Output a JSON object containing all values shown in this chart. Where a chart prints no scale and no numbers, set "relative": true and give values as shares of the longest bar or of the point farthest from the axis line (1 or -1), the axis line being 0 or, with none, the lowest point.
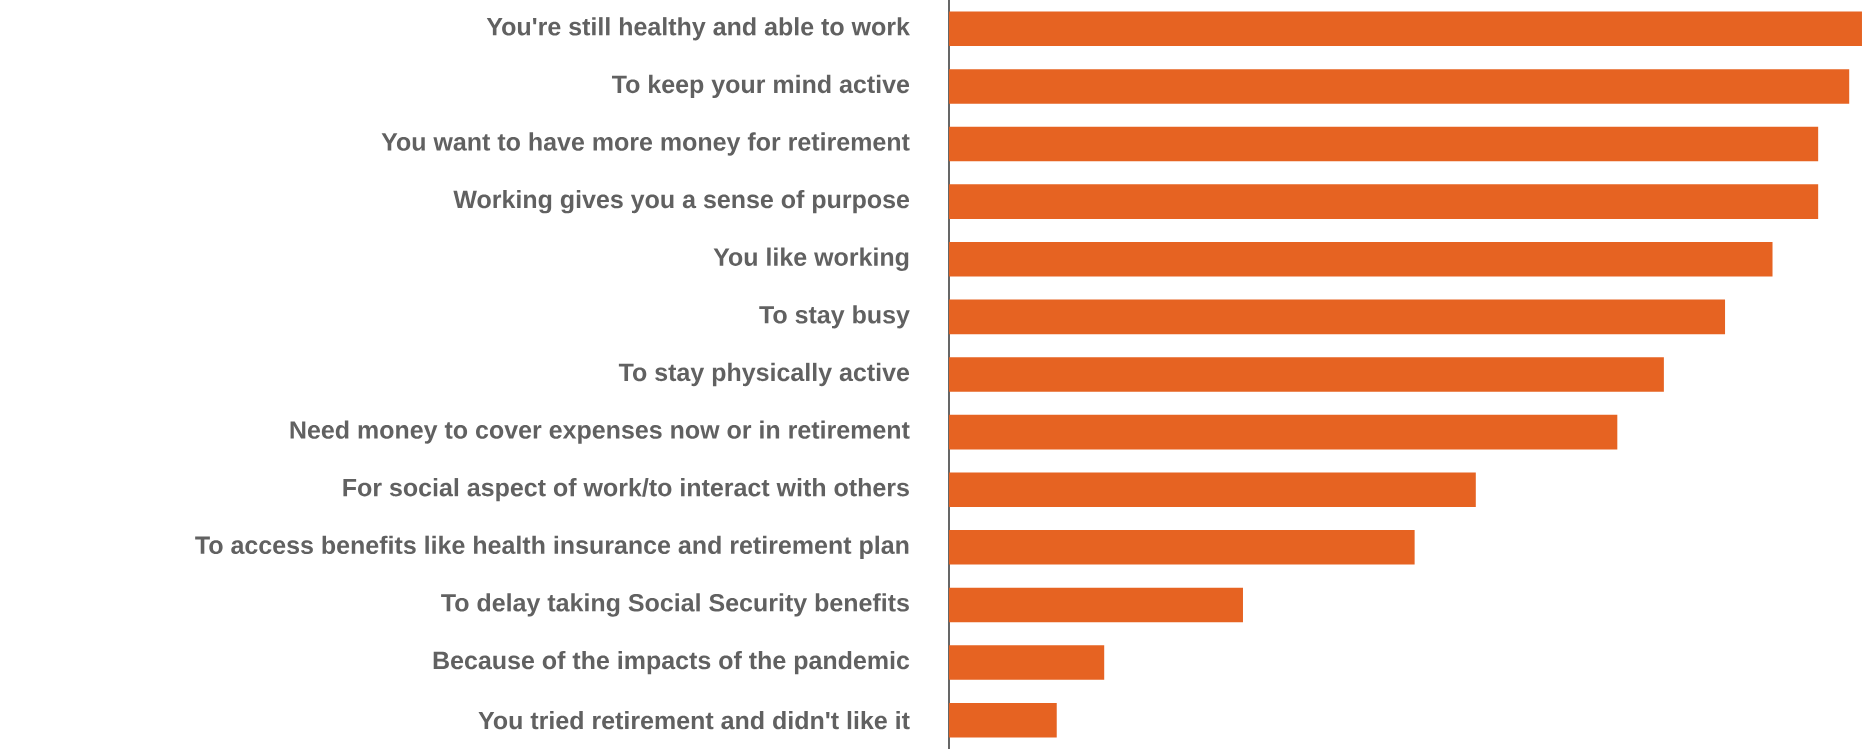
{
  "chart_data": {
    "type": "bar",
    "orientation": "horizontal",
    "relative": true,
    "color": "#e66322",
    "categories": [
      "You're still healthy and able to work",
      "To keep your mind active",
      "You want to have more money for retirement",
      "Working gives you a sense of purpose",
      "You like working",
      "To stay busy",
      "To stay physically active",
      "Need money to cover expenses now or in retirement",
      "For social aspect of work/to interact with others",
      "To access benefits like health insurance and retirement plan",
      "To delay taking Social Security benefits",
      "Because of the impacts of the pandemic",
      "You tried retirement and didn't like it"
    ],
    "values": [
      1,
      0.986,
      0.952,
      0.952,
      0.902,
      0.85,
      0.783,
      0.732,
      0.577,
      0.51,
      0.322,
      0.17,
      0.118
    ]
  }
}
